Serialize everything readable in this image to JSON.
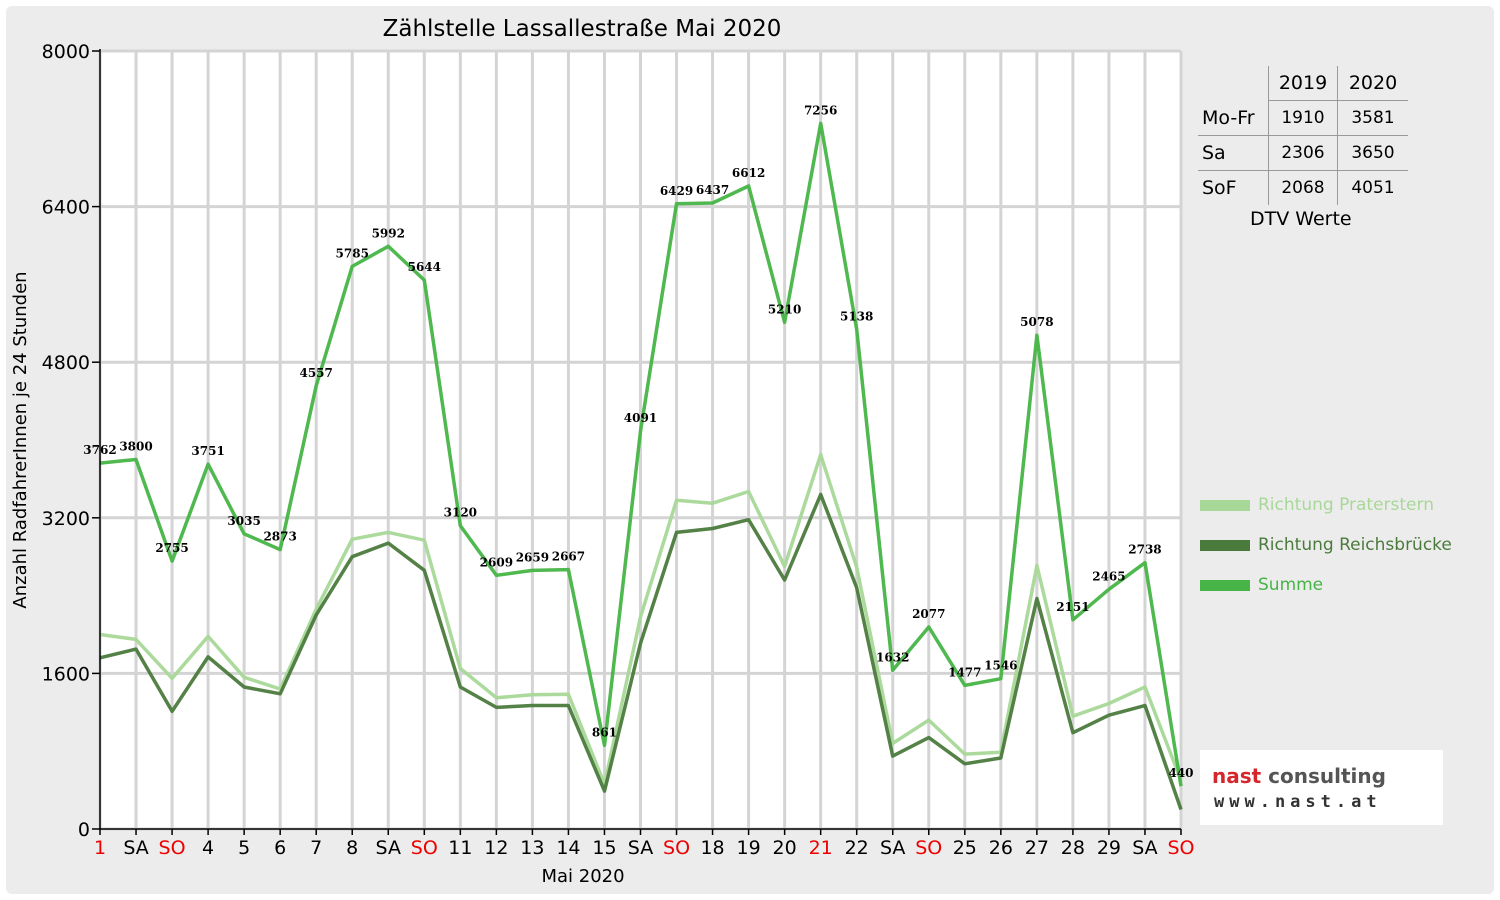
{
  "legend": {
    "praterstern": "Richtung Praterstern",
    "reichsbruecke": "Richtung Reichsbrücke",
    "summe": "Summe"
  },
  "dtv_table": {
    "headers": [
      "",
      "2019",
      "2020"
    ],
    "rows": [
      {
        "label": "Mo-Fr",
        "v2019": "1910",
        "v2020": "3581"
      },
      {
        "label": "Sa",
        "v2019": "2306",
        "v2020": "3650"
      },
      {
        "label": "SoF",
        "v2019": "2068",
        "v2020": "4051"
      }
    ],
    "caption": "DTV Werte"
  },
  "logo": {
    "name_left": "nast",
    "name_right": " consulting",
    "web": "www.nast.at"
  },
  "colors": {
    "praterstern": "#a8d898",
    "reichsbruecke": "#4a7a3c",
    "summe": "#46b446",
    "holiday": "#ee0000",
    "grid": "#d4d4d4"
  },
  "chart_data": {
    "type": "line",
    "title": "Zählstelle Lassallestraße Mai 2020",
    "xlabel": "Mai 2020",
    "ylabel": "Anzahl RadfahrerInnen je 24 Stunden",
    "ylim": [
      0,
      8000
    ],
    "yticks": [
      0,
      1600,
      3200,
      4800,
      6400,
      8000
    ],
    "grid": true,
    "legend_position": "right",
    "categories": [
      "1",
      "SA",
      "SO",
      "4",
      "5",
      "6",
      "7",
      "8",
      "SA",
      "SO",
      "11",
      "12",
      "13",
      "14",
      "15",
      "SA",
      "SO",
      "18",
      "19",
      "20",
      "21",
      "22",
      "SA",
      "SO",
      "25",
      "26",
      "27",
      "28",
      "29",
      "SA",
      "SO"
    ],
    "highlighted_categories": [
      0,
      2,
      9,
      16,
      20,
      23,
      30
    ],
    "series": [
      {
        "name": "Richtung Praterstern",
        "key": "praterstern",
        "values": [
          2000,
          1950,
          1550,
          1980,
          1560,
          1440,
          2260,
          2980,
          3050,
          2970,
          1650,
          1350,
          1380,
          1385,
          460,
          2180,
          3380,
          3350,
          3470,
          2700,
          3850,
          2690,
          880,
          1120,
          770,
          790,
          2710,
          1160,
          1290,
          1460,
          500
        ]
      },
      {
        "name": "Richtung Reichsbrücke",
        "key": "reichsbruecke",
        "values": [
          1760,
          1850,
          1210,
          1770,
          1460,
          1390,
          2200,
          2800,
          2940,
          2660,
          1460,
          1250,
          1270,
          1270,
          390,
          1910,
          3050,
          3090,
          3180,
          2560,
          3440,
          2480,
          750,
          940,
          670,
          730,
          2370,
          990,
          1170,
          1270,
          200
        ]
      },
      {
        "name": "Summe",
        "key": "summe",
        "values": [
          3762,
          3800,
          2755,
          3751,
          3035,
          2873,
          4557,
          5785,
          5992,
          5644,
          3120,
          2609,
          2659,
          2667,
          861,
          4091,
          6429,
          6437,
          6612,
          5210,
          7256,
          5138,
          1632,
          2077,
          1477,
          1546,
          5078,
          2151,
          2465,
          2738,
          440
        ]
      }
    ],
    "data_labels": [
      "3762",
      "3800",
      "2755",
      "3751",
      "3035",
      "2873",
      "4557",
      "5785",
      "5992",
      "5644",
      "3120",
      "2609",
      "2659",
      "2667",
      "861",
      "4091",
      "6429",
      "6437",
      "6612",
      "5210",
      "7256",
      "5138",
      "1632",
      "2077",
      "1477",
      "1546",
      "5078",
      "2151",
      "2465",
      "2738",
      "440"
    ]
  }
}
